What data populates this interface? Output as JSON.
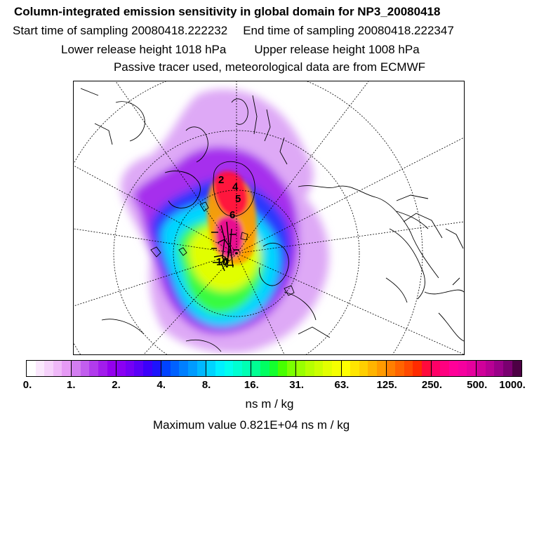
{
  "header": {
    "title": "Column-integrated emission sensitivity in global domain for NP3_20080418",
    "start_time": "Start time of sampling 20080418.222232",
    "end_time": "End time of sampling 20080418.222347",
    "lower_height": "Lower release height 1018 hPa",
    "upper_height": "Upper release height 1008 hPa",
    "tracer_note": "Passive tracer used, meteorological data are from ECMWF"
  },
  "map": {
    "projection": "polar-stereographic",
    "contour_labels": [
      "2",
      "4",
      "5",
      "6",
      "10"
    ]
  },
  "colorbar": {
    "tick_labels": [
      "0.",
      "1.",
      "2.",
      "4.",
      "8.",
      "16.",
      "31.",
      "63.",
      "125.",
      "250.",
      "500.",
      "1000."
    ],
    "segments": [
      [
        "#ffffff",
        "#fbe8fd",
        "#f6d2fb",
        "#efb8f8",
        "#e69af5"
      ],
      [
        "#d37df0",
        "#c25eee",
        "#b13bec",
        "#a21cec",
        "#9400ee"
      ],
      [
        "#8a00f3",
        "#7400f5",
        "#5a00f7",
        "#3c00fa",
        "#1d14fc"
      ],
      [
        "#0043ff",
        "#0061ff",
        "#007fff",
        "#009bff",
        "#00b8ff"
      ],
      [
        "#00d4ff",
        "#00f0ff",
        "#00ffee",
        "#00ffd1",
        "#00ffb3"
      ],
      [
        "#00ff93",
        "#00ff62",
        "#14ff2e",
        "#47ff00",
        "#7aff00"
      ],
      [
        "#99ff00",
        "#b6ff00",
        "#ccff00",
        "#e3ff00",
        "#f5ff00"
      ],
      [
        "#ffff00",
        "#ffe600",
        "#ffcf00",
        "#ffb400",
        "#ff9a00"
      ],
      [
        "#ff7f00",
        "#ff6400",
        "#ff4a00",
        "#ff2b00",
        "#ff0a3c"
      ],
      [
        "#ff0066",
        "#ff0080",
        "#ff0099",
        "#f5009f",
        "#e6009e"
      ],
      [
        "#d0009a",
        "#b80094",
        "#9a0088",
        "#7a0070",
        "#4d0044"
      ]
    ],
    "unit": "ns m / kg"
  },
  "footer": {
    "max_value": "Maximum value  0.821E+04 ns m / kg"
  }
}
